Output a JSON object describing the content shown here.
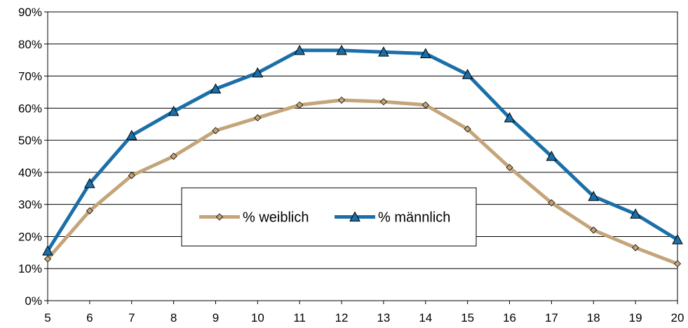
{
  "chart_data": {
    "type": "line",
    "title": "",
    "xlabel": "",
    "ylabel": "",
    "x": [
      5,
      6,
      7,
      8,
      9,
      10,
      11,
      12,
      13,
      14,
      15,
      16,
      17,
      18,
      19,
      20
    ],
    "ylim": [
      0,
      90
    ],
    "yticks": [
      "0%",
      "10%",
      "20%",
      "30%",
      "40%",
      "50%",
      "60%",
      "70%",
      "80%",
      "90%"
    ],
    "grid": true,
    "legend_position": "center",
    "series": [
      {
        "name": "% weiblich",
        "color": "#C4A57A",
        "marker": "diamond",
        "values": [
          13,
          28,
          39,
          45,
          53,
          57,
          61,
          62.5,
          62,
          61,
          53.5,
          41.5,
          30.5,
          22,
          16.5,
          11.5
        ]
      },
      {
        "name": "% männlich",
        "color": "#1B6FA8",
        "marker": "triangle",
        "values": [
          15.5,
          36.5,
          51.5,
          59,
          66,
          71,
          78,
          78,
          77.5,
          77,
          70.5,
          57,
          45,
          32.5,
          27,
          19
        ]
      }
    ]
  }
}
